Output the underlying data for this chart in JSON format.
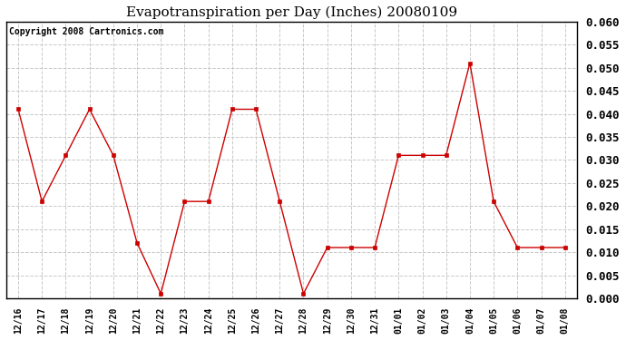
{
  "title": "Evapotranspiration per Day (Inches) 20080109",
  "copyright_text": "Copyright 2008 Cartronics.com",
  "x_labels": [
    "12/16",
    "12/17",
    "12/18",
    "12/19",
    "12/20",
    "12/21",
    "12/22",
    "12/23",
    "12/24",
    "12/25",
    "12/26",
    "12/27",
    "12/28",
    "12/29",
    "12/30",
    "12/31",
    "01/01",
    "01/02",
    "01/03",
    "01/04",
    "01/05",
    "01/06",
    "01/07",
    "01/08"
  ],
  "y_values": [
    0.041,
    0.021,
    0.031,
    0.041,
    0.031,
    0.012,
    0.001,
    0.021,
    0.021,
    0.041,
    0.041,
    0.021,
    0.001,
    0.011,
    0.011,
    0.011,
    0.031,
    0.031,
    0.031,
    0.051,
    0.021,
    0.011,
    0.011,
    0.011
  ],
  "line_color": "#cc0000",
  "marker_color": "#cc0000",
  "figure_bg_color": "#ffffff",
  "plot_bg_color": "#ffffff",
  "ylim": [
    0.0,
    0.06
  ],
  "ytick_step": 0.005,
  "title_fontsize": 11,
  "copyright_fontsize": 7,
  "axis_fontsize": 7,
  "ytick_fontsize": 9
}
